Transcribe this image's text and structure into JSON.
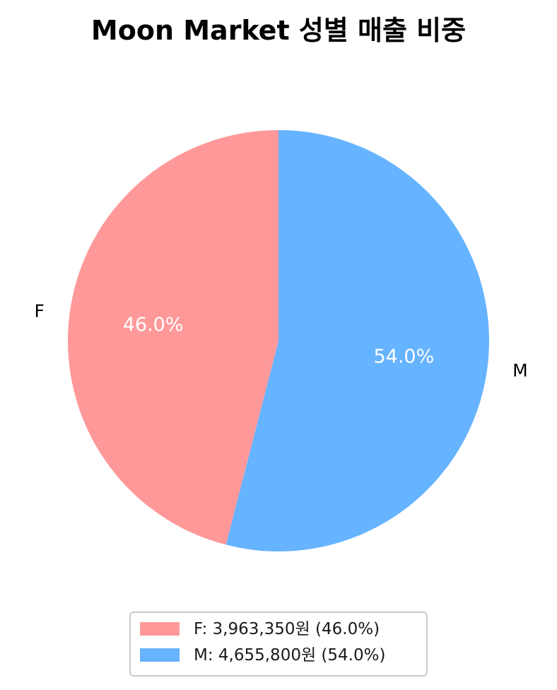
{
  "chart_data": {
    "type": "pie",
    "title": "Moon Market 성별 매출 비중",
    "start_angle_deg": 90,
    "direction": "clockwise",
    "slices": [
      {
        "category": "M",
        "value": 4655800,
        "percent_label": "54.0%",
        "legend_label": "M: 4,655,800원 (54.0%)",
        "color": "#66B3FF"
      },
      {
        "category": "F",
        "value": 3963350,
        "percent_label": "46.0%",
        "legend_label": "F: 3,963,350원 (46.0%)",
        "color": "#FF9999"
      }
    ],
    "legend": {
      "placement": "bottom-center",
      "order": [
        "F",
        "M"
      ]
    }
  }
}
